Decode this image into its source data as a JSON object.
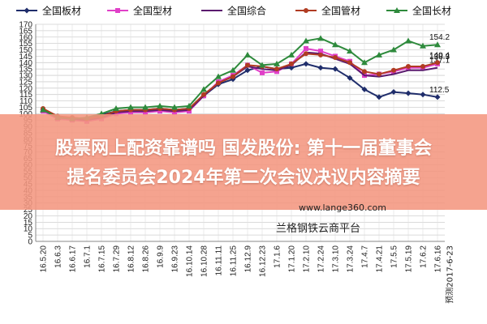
{
  "chart_data": {
    "type": "line",
    "title": "",
    "xlabel": "",
    "ylabel": "",
    "ylim": [
      0,
      170
    ],
    "yticks": [
      0,
      5,
      10,
      15,
      20,
      25,
      30,
      35,
      40,
      45,
      50,
      55,
      60,
      65,
      70,
      75,
      80,
      85,
      90,
      95,
      100,
      105,
      110,
      115,
      120,
      125,
      130,
      135,
      140,
      145,
      150,
      155,
      160,
      165,
      170
    ],
    "categories": [
      "16.5.20",
      "16.6.3",
      "16.6.17",
      "16.7.1",
      "16.7.15",
      "16.7.29",
      "16.8.12",
      "16.8.26",
      "16.9.9",
      "16.9.23",
      "16.10.14",
      "16.10.28",
      "16.11.11",
      "16.11.25",
      "16.12.9",
      "16.12.23",
      "17.1.6",
      "17.1.20",
      "17.2.10",
      "17.2.24",
      "17.3.10",
      "17.3.24",
      "17.4.7",
      "17.4.21",
      "17.5.5",
      "17.5.19",
      "17.6.2",
      "17.6.16"
    ],
    "last_tick_label": "预测2017-6-23",
    "grid": true,
    "legend_position": "top",
    "series": [
      {
        "name": "全国板材",
        "color": "#1f2d6b",
        "marker": "diamond",
        "values": [
          103,
          97,
          96,
          96,
          99,
          102,
          103,
          103,
          104,
          103,
          104,
          114,
          123,
          127,
          134,
          137,
          135,
          136,
          139,
          136,
          135,
          128,
          119,
          113,
          117,
          116,
          115,
          113
        ],
        "end_label": "112.5"
      },
      {
        "name": "全国型材",
        "color": "#e040c8",
        "marker": "square",
        "values": [
          102,
          96,
          95,
          94,
          96,
          100,
          101,
          101,
          102,
          101,
          102,
          114,
          125,
          130,
          138,
          132,
          133,
          139,
          151,
          149,
          145,
          141,
          130,
          131,
          133,
          136,
          136,
          139
        ],
        "end_label": "138.3"
      },
      {
        "name": "全国综合",
        "color": "#5a1a6e",
        "marker": "none",
        "values": [
          103,
          97,
          96,
          95,
          97,
          101,
          102,
          102,
          103,
          102,
          103,
          114,
          124,
          129,
          137,
          135,
          134,
          138,
          148,
          147,
          143,
          139,
          130,
          129,
          131,
          134,
          134,
          136
        ],
        "end_label": "137.1"
      },
      {
        "name": "全国管材",
        "color": "#b03c22",
        "marker": "circle",
        "values": [
          104,
          98,
          97,
          96,
          98,
          102,
          103,
          103,
          104,
          103,
          104,
          115,
          124,
          129,
          138,
          137,
          135,
          139,
          147,
          146,
          144,
          140,
          133,
          131,
          134,
          137,
          137,
          140
        ],
        "end_label": "140.4"
      },
      {
        "name": "全国长材",
        "color": "#2e8a3c",
        "marker": "triangle",
        "values": [
          103,
          97,
          96,
          97,
          100,
          104,
          105,
          105,
          106,
          105,
          106,
          119,
          129,
          134,
          146,
          138,
          139,
          146,
          157,
          159,
          154,
          149,
          140,
          146,
          150,
          157,
          153,
          154
        ],
        "end_label": "154.2"
      }
    ]
  },
  "overlay": {
    "headline_line1": "股票网上配资靠谱吗 国发股份: 第十一届董事会",
    "headline_line2": "提名委员会2024年第二次会议决议内容摘要",
    "watermark_url": "www.lange360.com",
    "watermark_platform": "兰格钢铁云商平台"
  }
}
